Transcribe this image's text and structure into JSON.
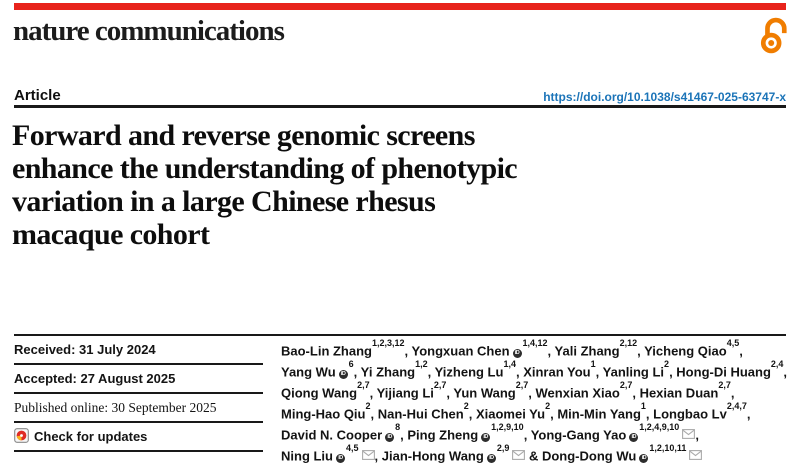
{
  "brand": {
    "journal": "nature communications",
    "bar_color": "#e8231b",
    "open_access_color": "#f07d00"
  },
  "header": {
    "article_label": "Article",
    "doi": "https://doi.org/10.1038/s41467-025-63747-x",
    "doi_color": "#1b74b8"
  },
  "title": {
    "lines": [
      "Forward and reverse genomic screens",
      "enhance the understanding of phenotypic",
      "variation in a large Chinese rhesus",
      "macaque cohort"
    ]
  },
  "dates": {
    "rows": [
      {
        "label": "Received: 31 July 2024",
        "style": "sans-bold"
      },
      {
        "label": "Accepted: 27 August 2025",
        "style": "sans-bold"
      },
      {
        "label": "Published online: 30 September 2025",
        "style": "serif"
      },
      {
        "label": "Check for updates",
        "style": "badge"
      }
    ]
  },
  "icons": {
    "open_access": "open-padlock",
    "orcid": "orcid-id-circle",
    "email": "envelope",
    "crossmark": "check-for-updates-mark",
    "crossmark_colors": {
      "red": "#e02c26",
      "yellow": "#f9b21d",
      "border": "#8a8a8a"
    },
    "orcid_color": "#2d2d2d",
    "email_color": "#ababab"
  },
  "authors": {
    "lines": [
      [
        {
          "name": "Bao-Lin Zhang",
          "orcid": false,
          "sup": "1,2,3,12",
          "mail": false,
          "sep": ", "
        },
        {
          "name": "Yongxuan Chen",
          "orcid": true,
          "sup": "1,4,12",
          "mail": false,
          "sep": ", "
        },
        {
          "name": "Yali Zhang",
          "orcid": false,
          "sup": "2,12",
          "mail": false,
          "sep": ", "
        },
        {
          "name": "Yicheng Qiao",
          "orcid": false,
          "sup": "4,5",
          "mail": false,
          "sep": ","
        }
      ],
      [
        {
          "name": "Yang Wu",
          "orcid": true,
          "sup": "6",
          "mail": false,
          "sep": ", "
        },
        {
          "name": "Yi Zhang",
          "orcid": false,
          "sup": "1,2",
          "mail": false,
          "sep": ", "
        },
        {
          "name": "Yizheng Lu",
          "orcid": false,
          "sup": "1,4",
          "mail": false,
          "sep": ", "
        },
        {
          "name": "Xinran You",
          "orcid": false,
          "sup": "1",
          "mail": false,
          "sep": ", "
        },
        {
          "name": "Yanling Li",
          "orcid": false,
          "sup": "2",
          "mail": false,
          "sep": ", "
        },
        {
          "name": "Hong-Di Huang",
          "orcid": false,
          "sup": "2,4",
          "mail": false,
          "sep": ","
        }
      ],
      [
        {
          "name": "Qiong Wang",
          "orcid": false,
          "sup": "2,7",
          "mail": false,
          "sep": ", "
        },
        {
          "name": "Yijiang Li",
          "orcid": false,
          "sup": "2,7",
          "mail": false,
          "sep": ", "
        },
        {
          "name": "Yun Wang",
          "orcid": false,
          "sup": "2,7",
          "mail": false,
          "sep": ", "
        },
        {
          "name": "Wenxian Xiao",
          "orcid": false,
          "sup": "2,7",
          "mail": false,
          "sep": ", "
        },
        {
          "name": "Hexian Duan",
          "orcid": false,
          "sup": "2,7",
          "mail": false,
          "sep": ","
        }
      ],
      [
        {
          "name": "Ming-Hao Qiu",
          "orcid": false,
          "sup": "2",
          "mail": false,
          "sep": ", "
        },
        {
          "name": "Nan-Hui Chen",
          "orcid": false,
          "sup": "2",
          "mail": false,
          "sep": ", "
        },
        {
          "name": "Xiaomei Yu",
          "orcid": false,
          "sup": "2",
          "mail": false,
          "sep": ", "
        },
        {
          "name": "Min-Min Yang",
          "orcid": false,
          "sup": "1",
          "mail": false,
          "sep": ", "
        },
        {
          "name": "Longbao Lv",
          "orcid": false,
          "sup": "2,4,7",
          "mail": false,
          "sep": ","
        }
      ],
      [
        {
          "name": "David N. Cooper",
          "orcid": true,
          "sup": "8",
          "mail": false,
          "sep": ", "
        },
        {
          "name": "Ping Zheng",
          "orcid": true,
          "sup": "1,2,9,10",
          "mail": false,
          "sep": ", "
        },
        {
          "name": "Yong-Gang Yao",
          "orcid": true,
          "sup": "1,2,4,9,10",
          "mail": true,
          "sep": ","
        }
      ],
      [
        {
          "name": "Ning Liu",
          "orcid": true,
          "sup": "4,5",
          "mail": true,
          "sep": ", "
        },
        {
          "name": "Jian-Hong Wang",
          "orcid": true,
          "sup": "2,9",
          "mail": true,
          "sep": " & "
        },
        {
          "name": "Dong-Dong Wu",
          "orcid": true,
          "sup": "1,2,10,11",
          "mail": true,
          "sep": ""
        }
      ]
    ]
  }
}
